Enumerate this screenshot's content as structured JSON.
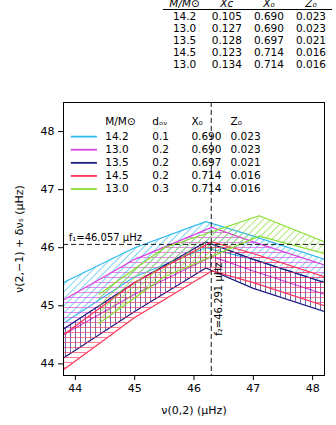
{
  "table": {
    "columns": [
      "M/M⊙",
      "Xc",
      "X₀",
      "Z₀"
    ],
    "rows": [
      [
        "14.2",
        "0.105",
        "0.690",
        "0.023"
      ],
      [
        "13.0",
        "0.127",
        "0.690",
        "0.023"
      ],
      [
        "13.5",
        "0.128",
        "0.697",
        "0.021"
      ],
      [
        "14.5",
        "0.123",
        "0.714",
        "0.016"
      ],
      [
        "13.0",
        "0.134",
        "0.714",
        "0.016"
      ]
    ]
  },
  "chart_data": {
    "type": "area",
    "x_label": "ν(0,2) (μHz)",
    "y_label": "ν(2,−1) + δνₛ (μHz)",
    "xlim": [
      43.8,
      48.2
    ],
    "ylim": [
      43.8,
      48.5
    ],
    "xticks": [
      44,
      45,
      46,
      47,
      48
    ],
    "yticks": [
      44,
      45,
      46,
      47,
      48
    ],
    "legend": "top-left",
    "legend_header": [
      "M/M⊙",
      "dₒᵥ",
      "X₀",
      "Z₀"
    ],
    "series": [
      {
        "name": "14.2",
        "d_ov": "0.1",
        "X0": "0.690",
        "Z0": "0.023",
        "color": "#33bbee",
        "x": [
          43.8,
          45.0,
          46.2,
          47.0,
          48.2
        ],
        "lower": [
          44.7,
          45.5,
          46.0,
          45.8,
          45.4
        ],
        "upper": [
          45.4,
          46.0,
          46.45,
          46.2,
          45.8
        ]
      },
      {
        "name": "13.0",
        "d_ov": "0.2",
        "X0": "0.690",
        "Z0": "0.023",
        "color": "#dd44dd",
        "x": [
          43.8,
          45.0,
          46.3,
          47.0,
          48.2
        ],
        "lower": [
          44.5,
          45.2,
          45.85,
          45.6,
          45.2
        ],
        "upper": [
          45.1,
          45.8,
          46.35,
          46.1,
          45.7
        ]
      },
      {
        "name": "13.5",
        "d_ov": "0.2",
        "X0": "0.697",
        "Z0": "0.021",
        "color": "#1a1a80",
        "x": [
          43.8,
          45.0,
          46.2,
          47.0,
          48.2
        ],
        "lower": [
          44.1,
          44.9,
          45.65,
          45.3,
          44.9
        ],
        "upper": [
          44.6,
          45.4,
          46.1,
          45.8,
          45.4
        ]
      },
      {
        "name": "14.5",
        "d_ov": "0.2",
        "X0": "0.714",
        "Z0": "0.016",
        "color": "#ff3355",
        "x": [
          43.8,
          45.0,
          46.3,
          47.0,
          48.2
        ],
        "lower": [
          43.9,
          44.8,
          45.6,
          45.4,
          45.0
        ],
        "upper": [
          44.5,
          45.4,
          46.1,
          45.9,
          45.5
        ]
      },
      {
        "name": "13.0",
        "d_ov": "0.3",
        "X0": "0.714",
        "Z0": "0.016",
        "color": "#88dd33",
        "x": [
          44.4,
          45.5,
          47.1,
          48.2
        ],
        "lower": [
          44.7,
          45.5,
          46.2,
          45.9
        ],
        "upper": [
          45.2,
          46.0,
          46.55,
          46.1
        ]
      }
    ],
    "annotations": [
      {
        "axis": "y",
        "value": 46.057,
        "label": "f₁=46.057 μHz"
      },
      {
        "axis": "x",
        "value": 46.291,
        "label": "f₂=46.291 μHz"
      }
    ]
  }
}
